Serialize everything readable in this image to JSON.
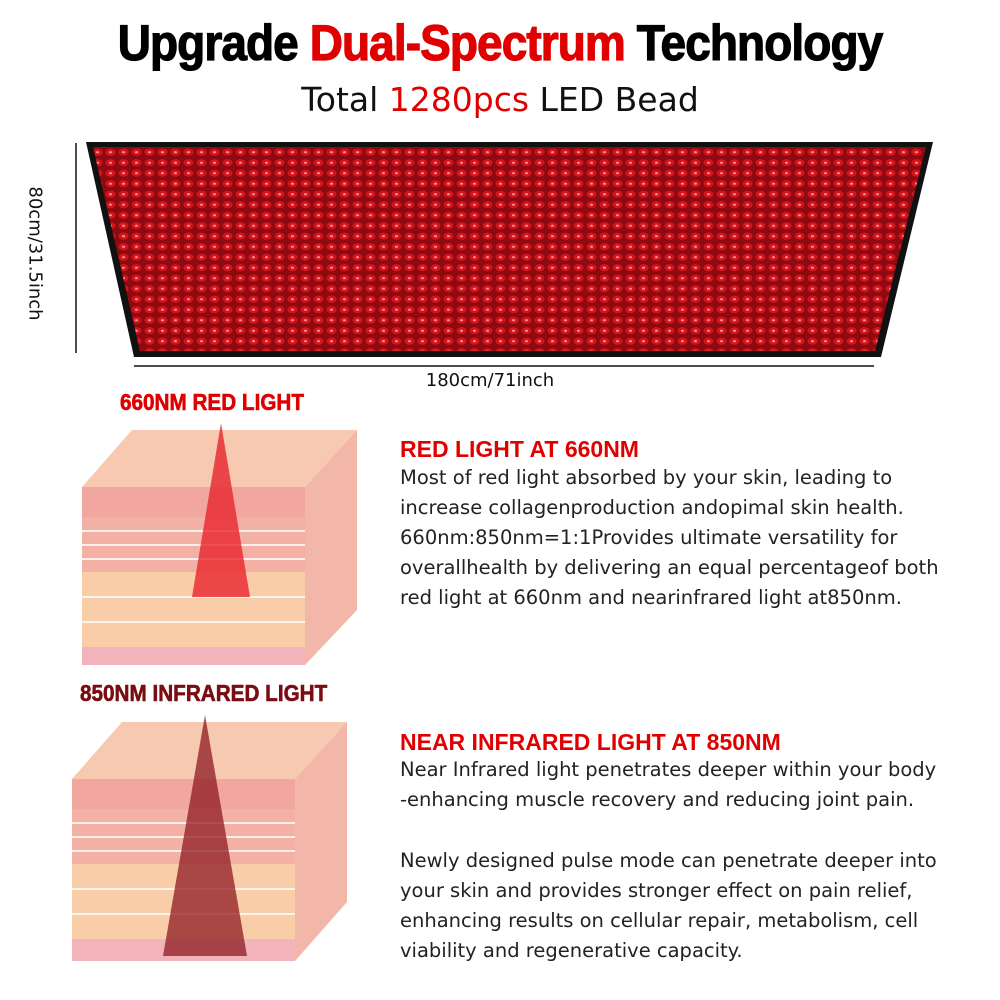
{
  "header": {
    "title_pre": "Upgrade ",
    "title_highlight": "Dual-Spectrum",
    "title_post": " Technology",
    "subtitle_pre": "Total ",
    "subtitle_highlight": "1280pcs",
    "subtitle_post": " LED Bead"
  },
  "panel": {
    "height_label": "80cm/31.5inch",
    "width_label": "180cm/71inch"
  },
  "red_section": {
    "diagram_label": "660NM RED LIGHT",
    "title": "RED LIGHT AT 660NM",
    "lines": [
      "Most of red light absorbed by your skin, leading to",
      "increase collagenproduction andopimal skin health.",
      "660nm:850nm=1:1Provides ultimate versatility for",
      "overallhealth by delivering an equal percentageof both",
      "red light at 660nm and nearinfrared light at850nm."
    ]
  },
  "nir_section": {
    "diagram_label": "850NM INFRARED LIGHT",
    "title": "NEAR INFRARED LIGHT AT 850NM",
    "lines": [
      "Near Infrared light penetrates deeper within your body",
      "-enhancing muscle recovery and reducing joint pain."
    ],
    "lines2": [
      "Newly designed pulse mode can penetrate deeper into",
      "your skin and provides stronger effect on pain relief,",
      "enhancing results on cellular repair, metabolism, cell",
      "viability and regenerative capacity."
    ]
  },
  "colors": {
    "accent_red": "#e10000",
    "infrared_label": "#7a0c12",
    "led_red": "#c4121a"
  }
}
